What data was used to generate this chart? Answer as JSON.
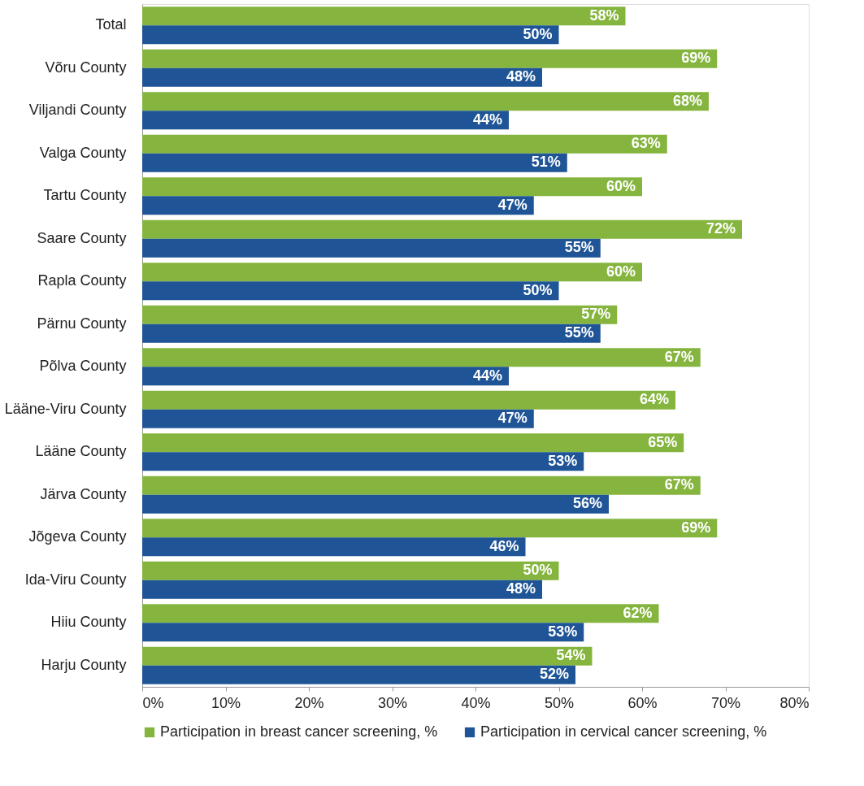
{
  "chart_data": {
    "type": "bar",
    "orientation": "horizontal",
    "categories": [
      "Total",
      "Võru County",
      "Viljandi County",
      "Valga County",
      "Tartu County",
      "Saare County",
      "Rapla County",
      "Pärnu County",
      "Põlva County",
      "Lääne-Viru County",
      "Lääne County",
      "Järva County",
      "Jõgeva County",
      "Ida-Viru County",
      "Hiiu County",
      "Harju County"
    ],
    "series": [
      {
        "name": "Participation in breast cancer screening, %",
        "color": "#85b53e",
        "values": [
          58,
          69,
          68,
          63,
          60,
          72,
          60,
          57,
          67,
          64,
          65,
          67,
          69,
          50,
          62,
          54
        ],
        "value_labels": [
          "58%",
          "69%",
          "68%",
          "63%",
          "60%",
          "72%",
          "60%",
          "57%",
          "67%",
          "64%",
          "65%",
          "67%",
          "69%",
          "50%",
          "62%",
          "54%"
        ]
      },
      {
        "name": "Participation in cervical cancer screening, %",
        "color": "#1f5596",
        "values": [
          50,
          48,
          44,
          51,
          47,
          55,
          50,
          55,
          44,
          47,
          53,
          56,
          46,
          48,
          53,
          52
        ],
        "value_labels": [
          "50%",
          "48%",
          "44%",
          "51%",
          "47%",
          "55%",
          "50%",
          "55%",
          "44%",
          "47%",
          "53%",
          "56%",
          "46%",
          "48%",
          "53%",
          "52%"
        ]
      }
    ],
    "xlim": [
      0,
      80
    ],
    "xticks": [
      {
        "value": 0,
        "label": "0%"
      },
      {
        "value": 10,
        "label": "10%"
      },
      {
        "value": 20,
        "label": "20%"
      },
      {
        "value": 30,
        "label": "30%"
      },
      {
        "value": 40,
        "label": "40%"
      },
      {
        "value": 50,
        "label": "50%"
      },
      {
        "value": 60,
        "label": "60%"
      },
      {
        "value": 70,
        "label": "70%"
      },
      {
        "value": 80,
        "label": "80%"
      }
    ],
    "grid": false,
    "legend": "bottom"
  }
}
